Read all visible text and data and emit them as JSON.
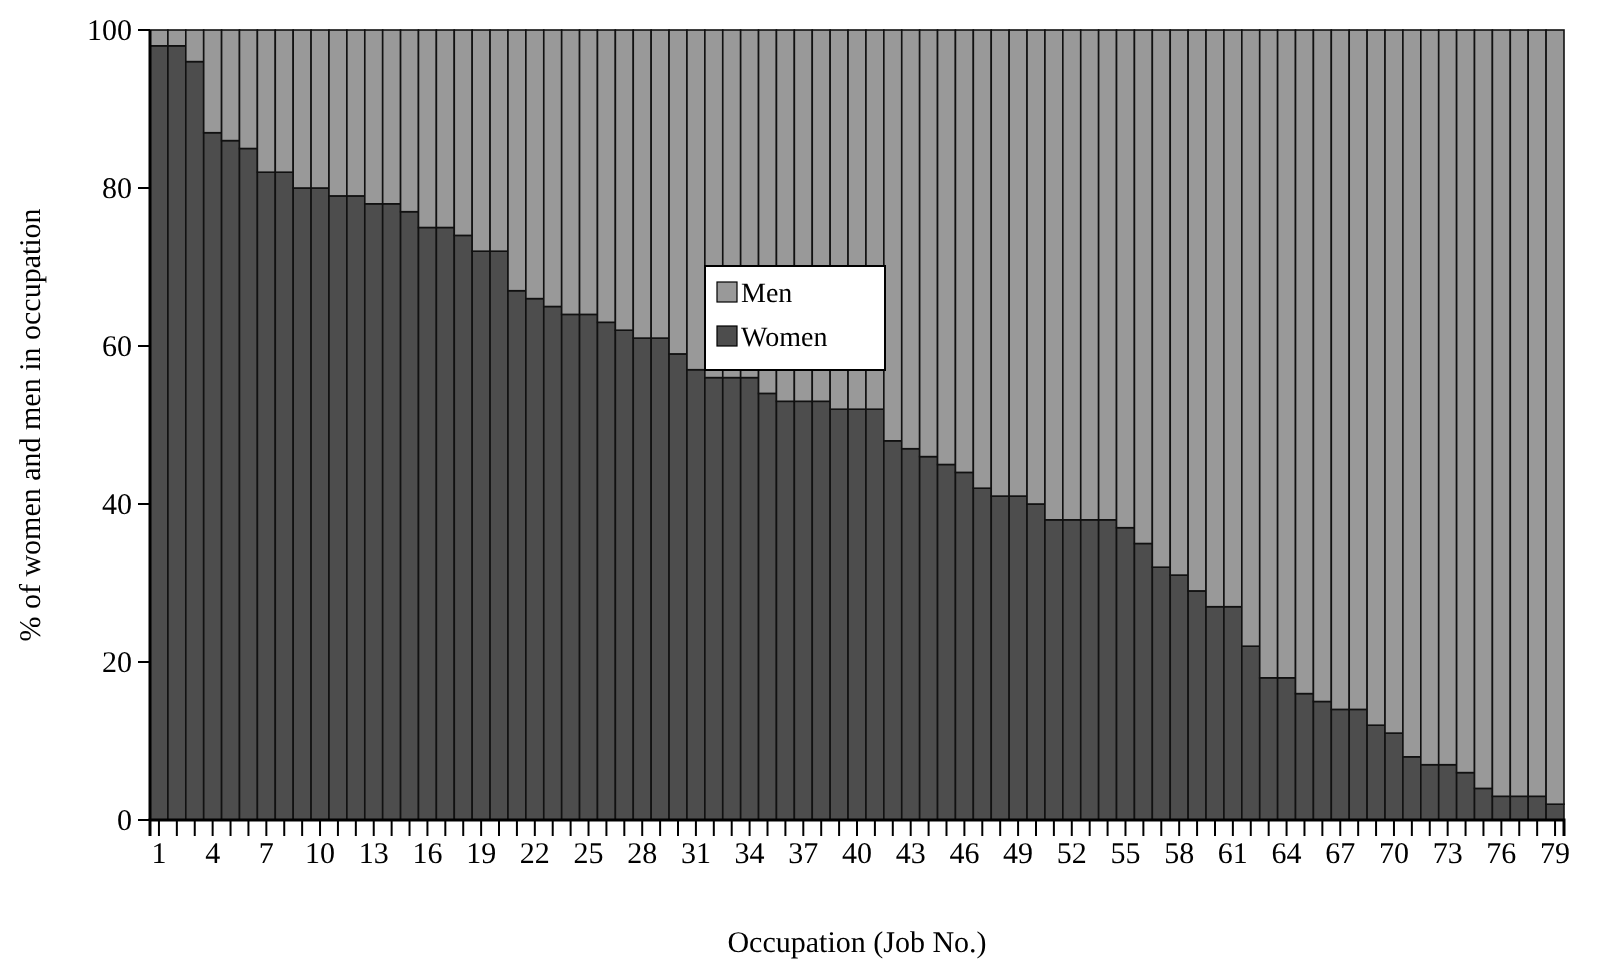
{
  "chart_data": {
    "type": "bar",
    "stacked": true,
    "xlabel": "Occupation (Job No.)",
    "ylabel": "% of women and men in occupation",
    "categories": [
      "1",
      null,
      null,
      "4",
      null,
      null,
      "7",
      null,
      null,
      "10",
      null,
      null,
      "13",
      null,
      null,
      "16",
      null,
      null,
      "19",
      null,
      null,
      "22",
      null,
      null,
      "25",
      null,
      null,
      "28",
      null,
      null,
      "31",
      null,
      null,
      "34",
      null,
      null,
      "37",
      null,
      null,
      "40",
      null,
      null,
      "43",
      null,
      null,
      "46",
      null,
      null,
      "49",
      null,
      null,
      "52",
      null,
      null,
      "55",
      null,
      null,
      "58",
      null,
      null,
      "61",
      null,
      null,
      "64",
      null,
      null,
      "67",
      null,
      null,
      "70",
      null,
      null,
      "73",
      null,
      null,
      "76",
      null,
      null,
      "79"
    ],
    "series": [
      {
        "name": "Women",
        "color": "#4d4d4d",
        "values": [
          98,
          98,
          96,
          87,
          86,
          85,
          82,
          82,
          80,
          80,
          79,
          79,
          78,
          78,
          77,
          75,
          75,
          74,
          72,
          72,
          67,
          66,
          65,
          64,
          64,
          63,
          62,
          61,
          61,
          59,
          57,
          56,
          56,
          56,
          54,
          53,
          53,
          53,
          52,
          52,
          52,
          48,
          47,
          46,
          45,
          44,
          42,
          41,
          41,
          40,
          38,
          38,
          38,
          38,
          37,
          35,
          32,
          31,
          29,
          27,
          27,
          22,
          18,
          18,
          16,
          15,
          14,
          14,
          12,
          11,
          8,
          7,
          7,
          6,
          4,
          3,
          3,
          3,
          2
        ]
      },
      {
        "name": "Men",
        "color": "#999999",
        "values": [
          2,
          2,
          4,
          13,
          14,
          15,
          18,
          18,
          20,
          20,
          21,
          21,
          22,
          22,
          23,
          25,
          25,
          26,
          28,
          28,
          33,
          34,
          35,
          36,
          36,
          37,
          38,
          39,
          39,
          41,
          43,
          44,
          44,
          44,
          46,
          47,
          47,
          47,
          48,
          48,
          48,
          52,
          53,
          54,
          55,
          56,
          58,
          59,
          59,
          60,
          62,
          62,
          62,
          62,
          63,
          65,
          68,
          69,
          71,
          73,
          73,
          78,
          82,
          82,
          84,
          85,
          86,
          86,
          88,
          89,
          92,
          93,
          93,
          94,
          96,
          97,
          97,
          97,
          98
        ]
      }
    ],
    "ylim": [
      0,
      100
    ],
    "yticks": [
      0,
      20,
      40,
      60,
      80,
      100
    ],
    "grid": false,
    "legend": "top"
  }
}
